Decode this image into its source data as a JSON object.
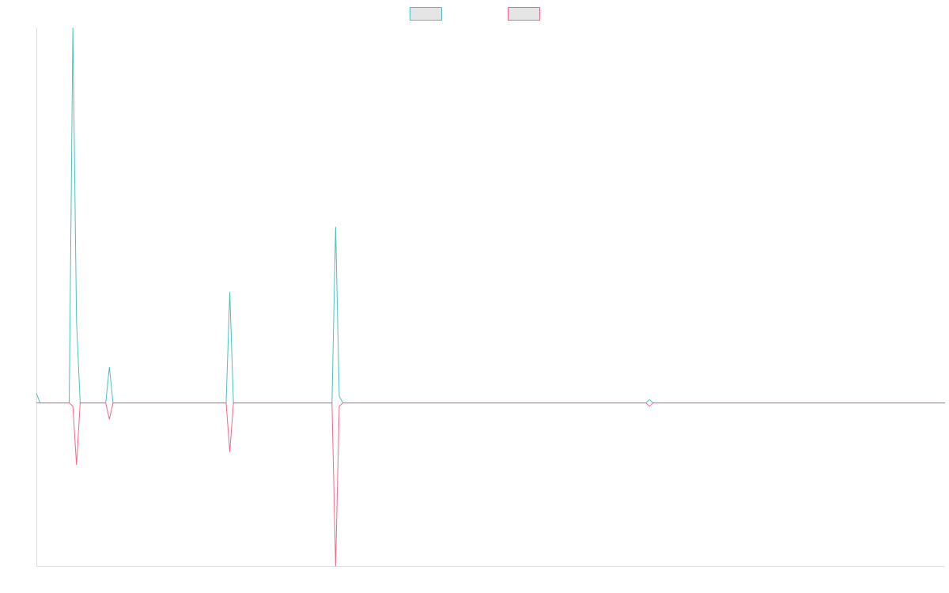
{
  "chart_data": {
    "type": "line",
    "title": "",
    "xlabel": "",
    "ylabel": "",
    "grid": false,
    "legend_position": "top-center",
    "ylim": [
      -50,
      115
    ],
    "series": [
      {
        "color": "#4bc0c0",
        "fill": "#e5e5e5",
        "points": [
          [
            0,
            3
          ],
          [
            1,
            0
          ],
          [
            2,
            0
          ],
          [
            3,
            0
          ],
          [
            4,
            0
          ],
          [
            5,
            0
          ],
          [
            6,
            0
          ],
          [
            7,
            0
          ],
          [
            8,
            0
          ],
          [
            9,
            0
          ],
          [
            10,
            115
          ],
          [
            11,
            25
          ],
          [
            12,
            0
          ],
          [
            13,
            0
          ],
          [
            14,
            0
          ],
          [
            15,
            0
          ],
          [
            16,
            0
          ],
          [
            17,
            0
          ],
          [
            18,
            0
          ],
          [
            19,
            0
          ],
          [
            20,
            11
          ],
          [
            21,
            0
          ],
          [
            22,
            0
          ],
          [
            52,
            0
          ],
          [
            53,
            34
          ],
          [
            54,
            0
          ],
          [
            55,
            0
          ],
          [
            81,
            0
          ],
          [
            82,
            54
          ],
          [
            83,
            2
          ],
          [
            84,
            0
          ],
          [
            85,
            0
          ],
          [
            167,
            0
          ],
          [
            168,
            1
          ],
          [
            169,
            0
          ],
          [
            249,
            0
          ]
        ]
      },
      {
        "color": "#ff6384",
        "fill": "#e5e5e5",
        "points": [
          [
            0,
            0
          ],
          [
            1,
            0
          ],
          [
            2,
            0
          ],
          [
            3,
            0
          ],
          [
            4,
            0
          ],
          [
            5,
            0
          ],
          [
            6,
            0
          ],
          [
            7,
            0
          ],
          [
            8,
            0
          ],
          [
            9,
            0
          ],
          [
            10,
            -1
          ],
          [
            11,
            -19
          ],
          [
            12,
            0
          ],
          [
            13,
            0
          ],
          [
            14,
            0
          ],
          [
            15,
            0
          ],
          [
            16,
            0
          ],
          [
            17,
            0
          ],
          [
            18,
            0
          ],
          [
            19,
            0
          ],
          [
            20,
            -5
          ],
          [
            21,
            0
          ],
          [
            22,
            0
          ],
          [
            52,
            0
          ],
          [
            53,
            -15
          ],
          [
            54,
            0
          ],
          [
            55,
            0
          ],
          [
            81,
            0
          ],
          [
            82,
            -50
          ],
          [
            83,
            -1
          ],
          [
            84,
            0
          ],
          [
            85,
            0
          ],
          [
            167,
            0
          ],
          [
            168,
            -1
          ],
          [
            169,
            0
          ],
          [
            249,
            0
          ]
        ]
      }
    ]
  }
}
